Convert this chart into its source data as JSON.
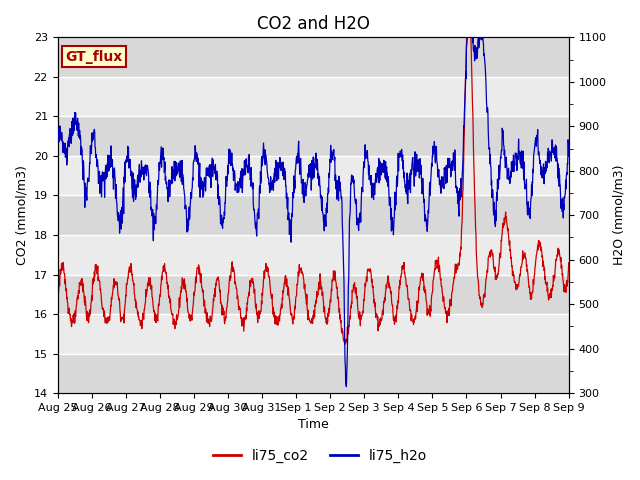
{
  "title": "CO2 and H2O",
  "xlabel": "Time",
  "ylabel_left": "CO2 (mmol/m3)",
  "ylabel_right": "H2O (mmol/m3)",
  "annotation_text": "GT_flux",
  "annotation_bg": "#ffffcc",
  "annotation_border": "#aa0000",
  "ylim_left": [
    14.0,
    23.0
  ],
  "ylim_right": [
    300,
    1100
  ],
  "yticks_left": [
    14.0,
    15.0,
    16.0,
    17.0,
    18.0,
    19.0,
    20.0,
    21.0,
    22.0,
    23.0
  ],
  "yticks_right": [
    300,
    400,
    500,
    600,
    700,
    800,
    900,
    1000,
    1100
  ],
  "background_color": "#ffffff",
  "plot_bg_color": "#ebebeb",
  "stripe_color": "#d8d8d8",
  "grid_color": "#ffffff",
  "co2_color": "#cc0000",
  "h2o_color": "#0000bb",
  "line_width": 0.9,
  "title_fontsize": 12,
  "label_fontsize": 9,
  "tick_fontsize": 8,
  "legend_fontsize": 10
}
